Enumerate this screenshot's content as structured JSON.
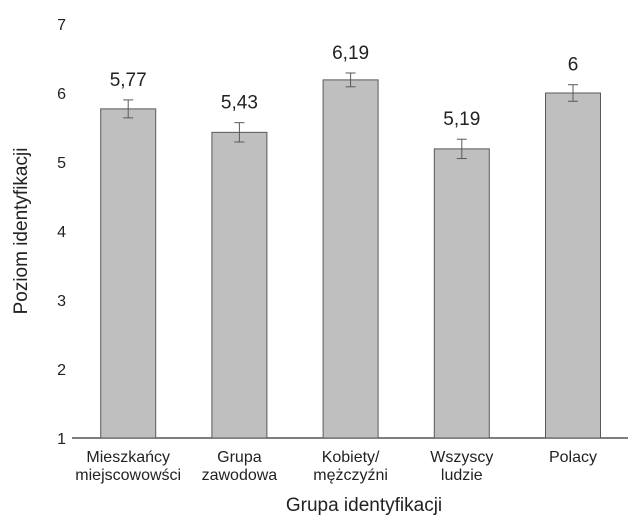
{
  "chart_data": {
    "type": "bar",
    "categories": [
      [
        "Mieszkańcy",
        "miejscowowści"
      ],
      [
        "Grupa",
        "zawodowa"
      ],
      [
        "Kobiety/",
        "mężczyźni"
      ],
      [
        "Wszyscy",
        "ludzie"
      ],
      [
        "Polacy"
      ]
    ],
    "values": [
      5.77,
      5.43,
      6.19,
      5.19,
      6
    ],
    "value_labels": [
      "5,77",
      "5,43",
      "6,19",
      "5,19",
      "6"
    ],
    "error_bars": [
      0.13,
      0.14,
      0.1,
      0.14,
      0.12
    ],
    "xlabel": "Grupa identyfikacji",
    "ylabel": "Poziom identyfikacji",
    "ylim": [
      1,
      7
    ],
    "yticks": [
      1,
      2,
      3,
      4,
      5,
      6,
      7
    ],
    "grid": false,
    "bar_color": "#bfbfbf",
    "bar_edge_color": "#595959",
    "error_bar_color": "#595959"
  }
}
